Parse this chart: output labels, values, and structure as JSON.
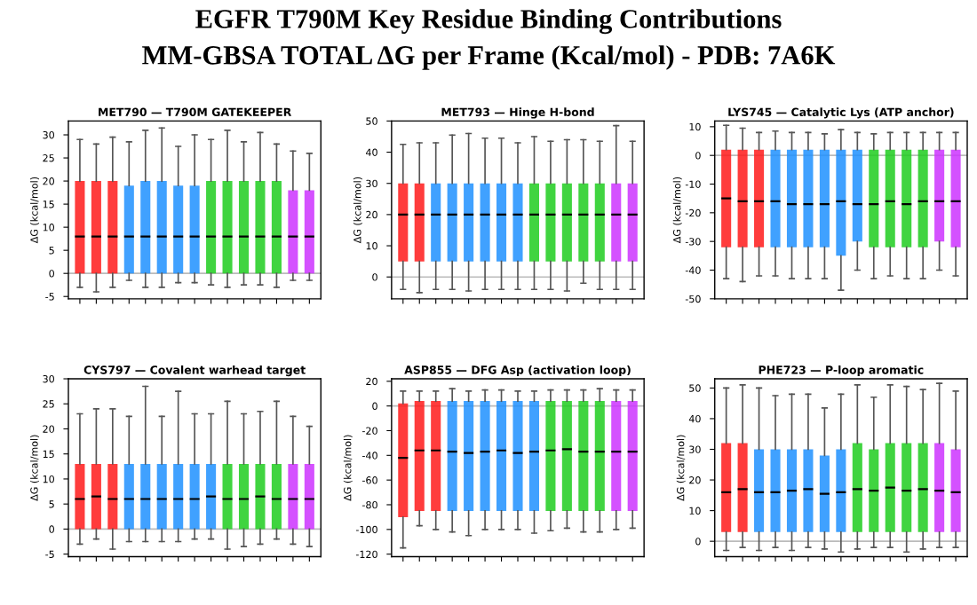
{
  "chart_data": [
    {
      "type": "other",
      "title": "EGFR T790M Key Residue Binding Contributions",
      "subtitle": "MM-GBSA TOTAL ΔG per Frame (Kcal/mol) - PDB: 7A6K"
    },
    {
      "type": "box",
      "title": "MET790 — T790M GATEKEEPER",
      "ylabel": "ΔG (kcal/mol)",
      "categories": [
        null,
        null,
        null,
        null,
        null,
        null,
        null,
        null,
        null,
        null,
        null,
        null,
        null,
        null,
        null
      ],
      "colors": [
        "#ff1a1a",
        "#ff1a1a",
        "#ff1a1a",
        "#1e90ff",
        "#1e90ff",
        "#1e90ff",
        "#1e90ff",
        "#1e90ff",
        "#1ecc1e",
        "#1ecc1e",
        "#1ecc1e",
        "#1ecc1e",
        "#1ecc1e",
        "#cc33ff",
        "#cc33ff"
      ],
      "ylim": [
        -5.5,
        33
      ],
      "yticks": [
        -5,
        0,
        5,
        10,
        15,
        20,
        25,
        30
      ],
      "ref_lines": [
        {
          "axis": "y",
          "value": 0,
          "color": "#bbbbbb"
        }
      ],
      "grid": false,
      "boxes": [
        {
          "low": -3,
          "q1": 0,
          "median": 8,
          "q3": 20,
          "high": 29
        },
        {
          "low": -4,
          "q1": 0,
          "median": 8,
          "q3": 20,
          "high": 28
        },
        {
          "low": -3,
          "q1": 0,
          "median": 8,
          "q3": 20,
          "high": 29.5
        },
        {
          "low": -1.5,
          "q1": 0,
          "median": 8,
          "q3": 19,
          "high": 28.5
        },
        {
          "low": -3,
          "q1": 0,
          "median": 8,
          "q3": 20,
          "high": 31
        },
        {
          "low": -3,
          "q1": 0,
          "median": 8,
          "q3": 20,
          "high": 31.5
        },
        {
          "low": -2,
          "q1": 0,
          "median": 8,
          "q3": 19,
          "high": 27.5
        },
        {
          "low": -2,
          "q1": 0,
          "median": 8,
          "q3": 19,
          "high": 30
        },
        {
          "low": -2.5,
          "q1": 0,
          "median": 8,
          "q3": 20,
          "high": 29
        },
        {
          "low": -3,
          "q1": 0,
          "median": 8,
          "q3": 20,
          "high": 31
        },
        {
          "low": -2.5,
          "q1": 0,
          "median": 8,
          "q3": 20,
          "high": 28.5
        },
        {
          "low": -2.5,
          "q1": 0,
          "median": 8,
          "q3": 20,
          "high": 30.5
        },
        {
          "low": -3,
          "q1": 0,
          "median": 8,
          "q3": 20,
          "high": 28
        },
        {
          "low": -1.5,
          "q1": 0,
          "median": 8,
          "q3": 18,
          "high": 26.5
        },
        {
          "low": -1.5,
          "q1": 0,
          "median": 8,
          "q3": 18,
          "high": 26
        }
      ]
    },
    {
      "type": "box",
      "title": "MET793 — Hinge H-bond",
      "ylabel": "ΔG (kcal/mol)",
      "categories": [
        null,
        null,
        null,
        null,
        null,
        null,
        null,
        null,
        null,
        null,
        null,
        null,
        null,
        null,
        null
      ],
      "colors": [
        "#ff1a1a",
        "#ff1a1a",
        "#1e90ff",
        "#1e90ff",
        "#1e90ff",
        "#1e90ff",
        "#1e90ff",
        "#1e90ff",
        "#1ecc1e",
        "#1ecc1e",
        "#1ecc1e",
        "#1ecc1e",
        "#1ecc1e",
        "#cc33ff",
        "#cc33ff"
      ],
      "ylim": [
        -7,
        50
      ],
      "yticks": [
        0,
        10,
        20,
        30,
        40,
        50
      ],
      "ref_lines": [
        {
          "axis": "y",
          "value": 0,
          "color": "#bbbbbb"
        }
      ],
      "grid": false,
      "boxes": [
        {
          "low": -4,
          "q1": 5,
          "median": 20,
          "q3": 30,
          "high": 42.5
        },
        {
          "low": -5,
          "q1": 5,
          "median": 20,
          "q3": 30,
          "high": 43
        },
        {
          "low": -4,
          "q1": 5,
          "median": 20,
          "q3": 30,
          "high": 43
        },
        {
          "low": -4,
          "q1": 5,
          "median": 20,
          "q3": 30,
          "high": 45.5
        },
        {
          "low": -4.5,
          "q1": 5,
          "median": 20,
          "q3": 30,
          "high": 46
        },
        {
          "low": -4,
          "q1": 5,
          "median": 20,
          "q3": 30,
          "high": 44.5
        },
        {
          "low": -4,
          "q1": 5,
          "median": 20,
          "q3": 30,
          "high": 44.5
        },
        {
          "low": -4,
          "q1": 5,
          "median": 20,
          "q3": 30,
          "high": 43
        },
        {
          "low": -4,
          "q1": 5,
          "median": 20,
          "q3": 30,
          "high": 45
        },
        {
          "low": -4,
          "q1": 5,
          "median": 20,
          "q3": 30,
          "high": 43.5
        },
        {
          "low": -4.5,
          "q1": 5,
          "median": 20,
          "q3": 30,
          "high": 44
        },
        {
          "low": -2,
          "q1": 5,
          "median": 20,
          "q3": 30,
          "high": 44
        },
        {
          "low": -4,
          "q1": 5,
          "median": 20,
          "q3": 30,
          "high": 43.5
        },
        {
          "low": -4,
          "q1": 5,
          "median": 20,
          "q3": 30,
          "high": 48.5
        },
        {
          "low": -4,
          "q1": 5,
          "median": 20,
          "q3": 30,
          "high": 43.5
        }
      ]
    },
    {
      "type": "box",
      "title": "LYS745 — Catalytic Lys (ATP anchor)",
      "ylabel": "ΔG (kcal/mol)",
      "categories": [
        null,
        null,
        null,
        null,
        null,
        null,
        null,
        null,
        null,
        null,
        null,
        null,
        null,
        null,
        null
      ],
      "colors": [
        "#ff1a1a",
        "#ff1a1a",
        "#ff1a1a",
        "#1e90ff",
        "#1e90ff",
        "#1e90ff",
        "#1e90ff",
        "#1e90ff",
        "#1e90ff",
        "#1ecc1e",
        "#1ecc1e",
        "#1ecc1e",
        "#1ecc1e",
        "#cc33ff",
        "#cc33ff"
      ],
      "ylim": [
        -50,
        12
      ],
      "yticks": [
        -50,
        -40,
        -30,
        -20,
        -10,
        0,
        10
      ],
      "ref_lines": [
        {
          "axis": "y",
          "value": 0,
          "color": "#bbbbbb"
        }
      ],
      "grid": false,
      "boxes": [
        {
          "low": -43,
          "q1": -32,
          "median": -15,
          "q3": 2,
          "high": 10.5
        },
        {
          "low": -44,
          "q1": -32,
          "median": -16,
          "q3": 2,
          "high": 9.5
        },
        {
          "low": -42,
          "q1": -32,
          "median": -16,
          "q3": 2,
          "high": 8
        },
        {
          "low": -42,
          "q1": -32,
          "median": -16,
          "q3": 2,
          "high": 8.5
        },
        {
          "low": -43,
          "q1": -32,
          "median": -17,
          "q3": 2,
          "high": 8
        },
        {
          "low": -43,
          "q1": -32,
          "median": -17,
          "q3": 2,
          "high": 8
        },
        {
          "low": -43,
          "q1": -32,
          "median": -17,
          "q3": 2,
          "high": 7.5
        },
        {
          "low": -47,
          "q1": -35,
          "median": -16,
          "q3": 2,
          "high": 9
        },
        {
          "low": -40,
          "q1": -30,
          "median": -17,
          "q3": 2,
          "high": 8
        },
        {
          "low": -43,
          "q1": -32,
          "median": -17,
          "q3": 2,
          "high": 7.5
        },
        {
          "low": -42,
          "q1": -32,
          "median": -16,
          "q3": 2,
          "high": 8
        },
        {
          "low": -43,
          "q1": -32,
          "median": -17,
          "q3": 2,
          "high": 8
        },
        {
          "low": -43,
          "q1": -32,
          "median": -16,
          "q3": 2,
          "high": 8
        },
        {
          "low": -40,
          "q1": -30,
          "median": -16,
          "q3": 2,
          "high": 8
        },
        {
          "low": -42,
          "q1": -32,
          "median": -16,
          "q3": 2,
          "high": 8
        }
      ]
    },
    {
      "type": "box",
      "title": "CYS797 — Covalent warhead target",
      "ylabel": "ΔG (kcal/mol)",
      "categories": [
        null,
        null,
        null,
        null,
        null,
        null,
        null,
        null,
        null,
        null,
        null,
        null,
        null,
        null,
        null
      ],
      "colors": [
        "#ff1a1a",
        "#ff1a1a",
        "#ff1a1a",
        "#1e90ff",
        "#1e90ff",
        "#1e90ff",
        "#1e90ff",
        "#1e90ff",
        "#1e90ff",
        "#1ecc1e",
        "#1ecc1e",
        "#1ecc1e",
        "#1ecc1e",
        "#cc33ff",
        "#cc33ff"
      ],
      "ylim": [
        -5.5,
        30
      ],
      "yticks": [
        -5,
        0,
        5,
        10,
        15,
        20,
        25,
        30
      ],
      "ref_lines": [
        {
          "axis": "y",
          "value": 0,
          "color": "#bbbbbb"
        }
      ],
      "grid": false,
      "boxes": [
        {
          "low": -3,
          "q1": 0,
          "median": 6,
          "q3": 13,
          "high": 23
        },
        {
          "low": -2,
          "q1": 0,
          "median": 6.5,
          "q3": 13,
          "high": 24
        },
        {
          "low": -4,
          "q1": 0,
          "median": 6,
          "q3": 13,
          "high": 24
        },
        {
          "low": -2.5,
          "q1": 0,
          "median": 6,
          "q3": 13,
          "high": 22.5
        },
        {
          "low": -2.5,
          "q1": 0,
          "median": 6,
          "q3": 13,
          "high": 28.5
        },
        {
          "low": -2.5,
          "q1": 0,
          "median": 6,
          "q3": 13,
          "high": 22.5
        },
        {
          "low": -2.5,
          "q1": 0,
          "median": 6,
          "q3": 13,
          "high": 27.5
        },
        {
          "low": -2,
          "q1": 0,
          "median": 6,
          "q3": 13,
          "high": 23
        },
        {
          "low": -2,
          "q1": 0,
          "median": 6.5,
          "q3": 13,
          "high": 23
        },
        {
          "low": -4,
          "q1": 0,
          "median": 6,
          "q3": 13,
          "high": 25.5
        },
        {
          "low": -3.5,
          "q1": 0,
          "median": 6,
          "q3": 13,
          "high": 23
        },
        {
          "low": -3,
          "q1": 0,
          "median": 6.5,
          "q3": 13,
          "high": 23.5
        },
        {
          "low": -2,
          "q1": 0,
          "median": 6,
          "q3": 13,
          "high": 25.5
        },
        {
          "low": -3,
          "q1": 0,
          "median": 6,
          "q3": 13,
          "high": 22.5
        },
        {
          "low": -3.5,
          "q1": 0,
          "median": 6,
          "q3": 13,
          "high": 20.5
        }
      ]
    },
    {
      "type": "box",
      "title": "ASP855 — DFG Asp (activation loop)",
      "ylabel": "ΔG (kcal/mol)",
      "categories": [
        null,
        null,
        null,
        null,
        null,
        null,
        null,
        null,
        null,
        null,
        null,
        null,
        null,
        null,
        null
      ],
      "colors": [
        "#ff1a1a",
        "#ff1a1a",
        "#ff1a1a",
        "#1e90ff",
        "#1e90ff",
        "#1e90ff",
        "#1e90ff",
        "#1e90ff",
        "#1e90ff",
        "#1ecc1e",
        "#1ecc1e",
        "#1ecc1e",
        "#1ecc1e",
        "#cc33ff",
        "#cc33ff"
      ],
      "ylim": [
        -122,
        22
      ],
      "yticks": [
        -120,
        -100,
        -80,
        -60,
        -40,
        -20,
        0,
        20
      ],
      "ref_lines": [
        {
          "axis": "y",
          "value": 0,
          "color": "#bbbbbb"
        }
      ],
      "grid": false,
      "boxes": [
        {
          "low": -115,
          "q1": -90,
          "median": -42,
          "q3": 2,
          "high": 12
        },
        {
          "low": -97,
          "q1": -85,
          "median": -36,
          "q3": 4,
          "high": 12
        },
        {
          "low": -100,
          "q1": -85,
          "median": -36,
          "q3": 4,
          "high": 12
        },
        {
          "low": -102,
          "q1": -85,
          "median": -37,
          "q3": 4,
          "high": 14
        },
        {
          "low": -105,
          "q1": -85,
          "median": -38,
          "q3": 4,
          "high": 12
        },
        {
          "low": -100,
          "q1": -85,
          "median": -37,
          "q3": 4,
          "high": 13
        },
        {
          "low": -100,
          "q1": -85,
          "median": -36,
          "q3": 4,
          "high": 13
        },
        {
          "low": -100,
          "q1": -85,
          "median": -38,
          "q3": 4,
          "high": 12
        },
        {
          "low": -103,
          "q1": -85,
          "median": -37,
          "q3": 4,
          "high": 12
        },
        {
          "low": -101,
          "q1": -85,
          "median": -36,
          "q3": 4,
          "high": 13
        },
        {
          "low": -99,
          "q1": -85,
          "median": -35,
          "q3": 4,
          "high": 13
        },
        {
          "low": -102,
          "q1": -85,
          "median": -37,
          "q3": 4,
          "high": 13
        },
        {
          "low": -102,
          "q1": -85,
          "median": -37,
          "q3": 4,
          "high": 14
        },
        {
          "low": -100,
          "q1": -85,
          "median": -37,
          "q3": 4,
          "high": 13
        },
        {
          "low": -99,
          "q1": -85,
          "median": -37,
          "q3": 4,
          "high": 13
        }
      ]
    },
    {
      "type": "box",
      "title": "PHE723 — P-loop aromatic",
      "ylabel": "ΔG (kcal/mol)",
      "categories": [
        null,
        null,
        null,
        null,
        null,
        null,
        null,
        null,
        null,
        null,
        null,
        null,
        null,
        null,
        null
      ],
      "colors": [
        "#ff1a1a",
        "#ff1a1a",
        "#1e90ff",
        "#1e90ff",
        "#1e90ff",
        "#1e90ff",
        "#1e90ff",
        "#1e90ff",
        "#1ecc1e",
        "#1ecc1e",
        "#1ecc1e",
        "#1ecc1e",
        "#1ecc1e",
        "#cc33ff",
        "#cc33ff"
      ],
      "ylim": [
        -5,
        53
      ],
      "yticks": [
        0,
        10,
        20,
        30,
        40,
        50
      ],
      "ref_lines": [
        {
          "axis": "y",
          "value": 0,
          "color": "#bbbbbb"
        }
      ],
      "grid": false,
      "boxes": [
        {
          "low": -3,
          "q1": 3,
          "median": 16,
          "q3": 32,
          "high": 50
        },
        {
          "low": -2,
          "q1": 3,
          "median": 17,
          "q3": 32,
          "high": 51
        },
        {
          "low": -3,
          "q1": 3,
          "median": 16,
          "q3": 30,
          "high": 50
        },
        {
          "low": -2,
          "q1": 3,
          "median": 16,
          "q3": 30,
          "high": 47.5
        },
        {
          "low": -3,
          "q1": 3,
          "median": 16.5,
          "q3": 30,
          "high": 48
        },
        {
          "low": -2,
          "q1": 3,
          "median": 17,
          "q3": 30,
          "high": 48
        },
        {
          "low": -2.5,
          "q1": 3,
          "median": 15.5,
          "q3": 28,
          "high": 43.5
        },
        {
          "low": -3.5,
          "q1": 3,
          "median": 16,
          "q3": 30,
          "high": 48
        },
        {
          "low": -2.5,
          "q1": 3,
          "median": 17,
          "q3": 32,
          "high": 51
        },
        {
          "low": -2,
          "q1": 3,
          "median": 16.5,
          "q3": 30,
          "high": 47
        },
        {
          "low": -2,
          "q1": 3,
          "median": 17.5,
          "q3": 32,
          "high": 51
        },
        {
          "low": -3.5,
          "q1": 3,
          "median": 16.5,
          "q3": 32,
          "high": 50.5
        },
        {
          "low": -2.5,
          "q1": 3,
          "median": 17,
          "q3": 32,
          "high": 49.5
        },
        {
          "low": -2,
          "q1": 3,
          "median": 16.5,
          "q3": 32,
          "high": 51.5
        },
        {
          "low": -2,
          "q1": 3,
          "median": 16,
          "q3": 30,
          "high": 49
        }
      ]
    }
  ]
}
